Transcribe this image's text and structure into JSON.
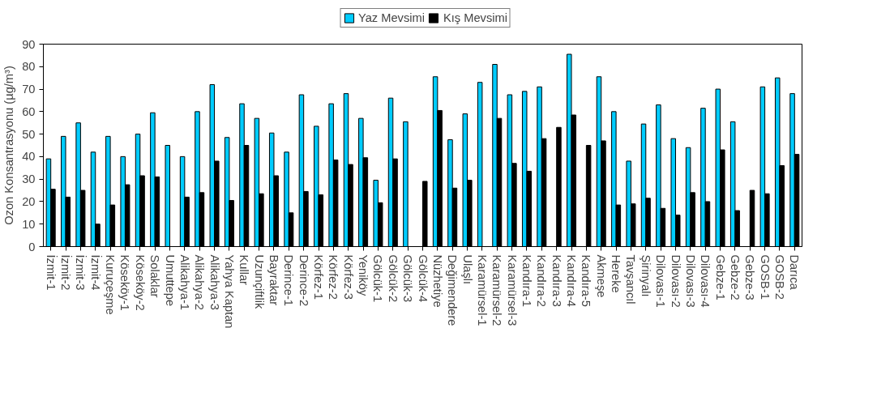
{
  "chart_data": {
    "type": "bar",
    "ylabel": "Ozon Konsantrasyonu (µg/m³)",
    "categories": [
      "İzmit-1",
      "İzmit-2",
      "İzmit-3",
      "İzmit-4",
      "Kuruçeşme",
      "Köseköy-1",
      "Köseköy-2",
      "Solaklar",
      "Umuttepe",
      "Alikahya-1",
      "Alikahya-2",
      "Alikahya-3",
      "Yahya Kaptan",
      "Kullar",
      "Uzunçiftlik",
      "Bayraktar",
      "Derince-1",
      "Derince-2",
      "Körfez-1",
      "Körfez-2",
      "Körfez-3",
      "Yeniköy",
      "Gölcük-1",
      "Gölcük-2",
      "Gölcük-3",
      "Gölcük-4",
      "Nüzhetiye",
      "Değimendere",
      "Ulaşlı",
      "Karamürsel-1",
      "Karamürsel-2",
      "Karamürsel-3",
      "Kandıra-1",
      "Kandıra-2",
      "Kandıra-3",
      "Kandıra-4",
      "Kandıra-5",
      "Akmeşe",
      "Hereke",
      "Tavşancıl",
      "Şirinyalı",
      "Dilovası-1",
      "Dilovası-2",
      "Dilovası-3",
      "Dilovası-4",
      "Gebze-1",
      "Gebze-2",
      "Gebze-3",
      "GOSB-1",
      "GOSB-2",
      "Darıca"
    ],
    "series": [
      {
        "name": "Yaz Mevsimi",
        "color": "#00ccff",
        "values": [
          39,
          49,
          55,
          42,
          49,
          40,
          50,
          59.5,
          45,
          40,
          60,
          72,
          48.5,
          63.5,
          57,
          50.5,
          42,
          67.5,
          53.5,
          63.5,
          68,
          57,
          29.5,
          66,
          55.5,
          null,
          75.5,
          47.5,
          59,
          73,
          81,
          67.5,
          69,
          71,
          null,
          85.5,
          null,
          75.5,
          60,
          38,
          54.5,
          63,
          48,
          44,
          61.5,
          70,
          55.5,
          null,
          71,
          75,
          68
        ]
      },
      {
        "name": "Kış Mevsimi",
        "color": "#000000",
        "values": [
          25.5,
          22,
          25,
          10,
          18.5,
          27.5,
          31.5,
          31,
          null,
          22,
          24,
          38,
          20.5,
          45,
          23.5,
          31.5,
          15,
          24.5,
          23,
          38.5,
          36.5,
          39.5,
          19.5,
          39,
          null,
          29,
          60.5,
          26,
          29.5,
          null,
          57,
          37,
          33.5,
          48,
          53,
          58.5,
          45,
          47,
          18.5,
          19,
          21.5,
          17,
          14,
          24,
          20,
          43,
          16,
          25,
          23.5,
          36,
          41
        ]
      }
    ],
    "ylim": [
      0,
      90
    ],
    "yticks": [
      0,
      10,
      20,
      30,
      40,
      50,
      60,
      70,
      80,
      90
    ],
    "grid": false,
    "legend": "top"
  }
}
